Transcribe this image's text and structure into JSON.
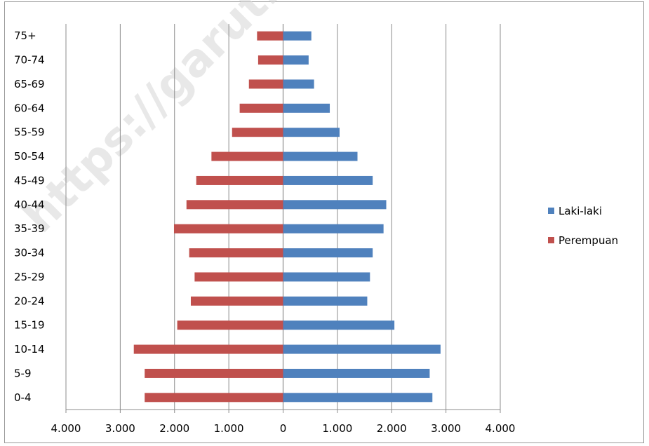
{
  "watermark": "https://garutkab.",
  "chart_data": {
    "type": "bar",
    "orientation": "horizontal",
    "title": "",
    "xlabel": "",
    "ylabel": "",
    "categories": [
      "0-4",
      "5-9",
      "10-14",
      "15-19",
      "20-24",
      "25-29",
      "30-34",
      "35-39",
      "40-44",
      "45-49",
      "50-54",
      "55-59",
      "60-64",
      "65-69",
      "70-74",
      "75+"
    ],
    "series": [
      {
        "name": "Laki-laki",
        "color": "#4f81bd",
        "values": [
          2750,
          2700,
          2900,
          2050,
          1550,
          1600,
          1650,
          1850,
          1900,
          1650,
          1370,
          1040,
          860,
          570,
          470,
          520
        ]
      },
      {
        "name": "Perempuan",
        "color": "#c0504d",
        "values": [
          -2550,
          -2550,
          -2750,
          -1950,
          -1700,
          -1630,
          -1730,
          -2010,
          -1780,
          -1600,
          -1320,
          -940,
          -800,
          -630,
          -460,
          -480
        ]
      }
    ],
    "xlim": [
      -4000,
      4000
    ],
    "xticks": [
      -4000,
      -3000,
      -2000,
      -1000,
      0,
      1000,
      2000,
      3000,
      4000
    ],
    "xtick_labels": [
      "4.000",
      "3.000",
      "2.000",
      "1.000",
      "0",
      "1.000",
      "2.000",
      "3.000",
      "4.000"
    ],
    "grid": "vertical",
    "legend": "right"
  }
}
